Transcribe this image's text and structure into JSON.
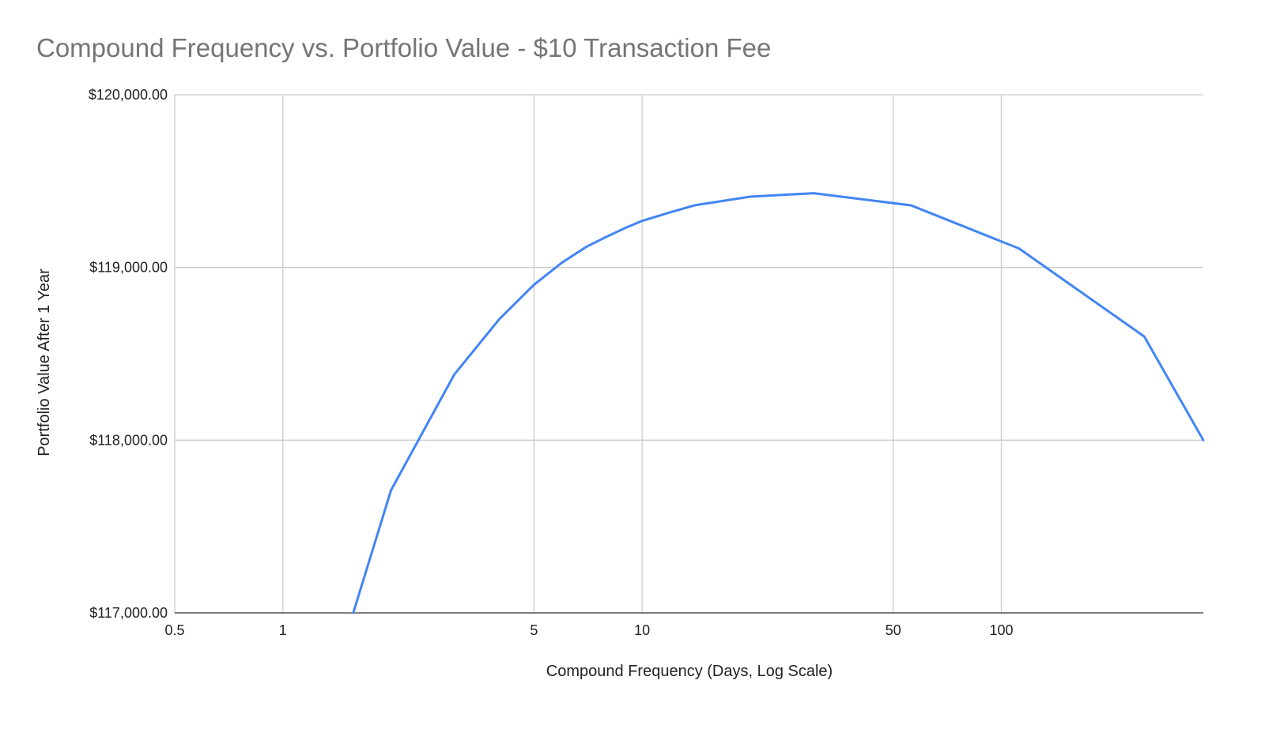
{
  "chart_data": {
    "type": "line",
    "title": "Compound Frequency vs. Portfolio Value - $10 Transaction Fee",
    "xlabel": "Compound Frequency (Days, Log Scale)",
    "ylabel": "Portfolio Value After 1 Year",
    "x_scale": "log",
    "xlim": [
      0.5,
      365
    ],
    "ylim": [
      117000,
      120000
    ],
    "x_ticks": [
      0.5,
      1,
      5,
      10,
      50,
      100
    ],
    "x_tick_labels": [
      "0.5",
      "1",
      "5",
      "10",
      "50",
      "100"
    ],
    "y_ticks": [
      117000,
      118000,
      119000,
      120000
    ],
    "y_tick_labels": [
      "$117,000.00",
      "$118,000.00",
      "$119,000.00",
      "$120,000.00"
    ],
    "grid": true,
    "legend": "none",
    "colors": {
      "series": "#4285f4",
      "grid": "#cccccc",
      "title": "#757575"
    },
    "series": [
      {
        "x": [
          1.57,
          2,
          3,
          4,
          5,
          6,
          7,
          8,
          9,
          10,
          12,
          14,
          20,
          30,
          56,
          112,
          250,
          365
        ],
        "values": [
          117000,
          117710,
          118380,
          118700,
          118900,
          119030,
          119120,
          119180,
          119230,
          119270,
          119320,
          119360,
          119410,
          119430,
          119360,
          119110,
          118600,
          118000
        ]
      }
    ]
  }
}
